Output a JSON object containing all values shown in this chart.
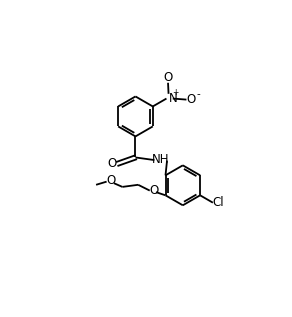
{
  "bg_color": "#ffffff",
  "bond_color": "#000000",
  "text_color": "#000000",
  "font_size": 7.5,
  "line_width": 1.3,
  "ring_r": 0.38,
  "xlim": [
    0.0,
    5.5
  ],
  "ylim": [
    0.8,
    5.8
  ]
}
